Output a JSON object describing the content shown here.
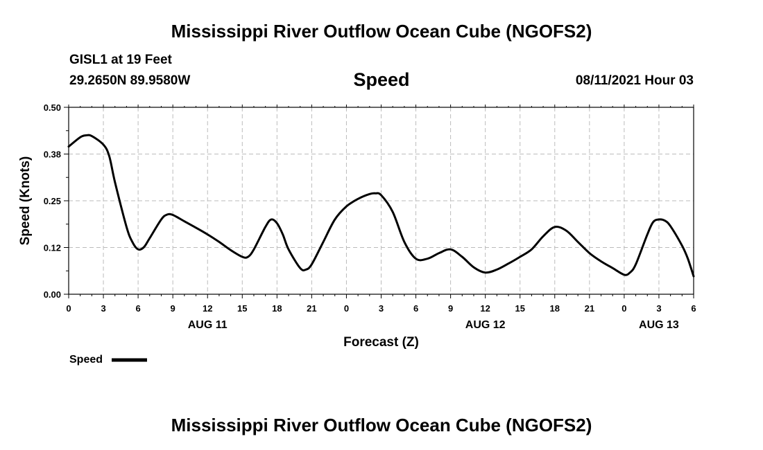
{
  "header": {
    "title": "Mississippi River Outflow Ocean Cube (NGOFS2)",
    "station": "GISL1 at 19 Feet",
    "coordinates": "29.2650N  89.9580W",
    "subtitle": "Speed",
    "datetime": "08/11/2021 Hour 03"
  },
  "footer": {
    "title": "Mississippi River Outflow Ocean Cube (NGOFS2)"
  },
  "colors": {
    "line": "#000000",
    "grid": "#bbbbbb"
  },
  "chart_data": {
    "type": "line",
    "title": "Speed",
    "xlabel": "Forecast (Z)",
    "ylabel": "Speed (Knots)",
    "xlim": [
      0,
      54
    ],
    "ylim": [
      0,
      0.5
    ],
    "grid": true,
    "legend": {
      "position": "bottom-left",
      "entries": [
        "Speed"
      ]
    },
    "yticks": [
      {
        "value": 0.0,
        "label": "0.00"
      },
      {
        "value": 0.125,
        "label": "0.12"
      },
      {
        "value": 0.25,
        "label": "0.25"
      },
      {
        "value": 0.375,
        "label": "0.38"
      },
      {
        "value": 0.5,
        "label": "0.50"
      }
    ],
    "xticks": [
      {
        "value": 0,
        "label": "0"
      },
      {
        "value": 3,
        "label": "3"
      },
      {
        "value": 6,
        "label": "6"
      },
      {
        "value": 9,
        "label": "9"
      },
      {
        "value": 12,
        "label": "12"
      },
      {
        "value": 15,
        "label": "15"
      },
      {
        "value": 18,
        "label": "18"
      },
      {
        "value": 21,
        "label": "21"
      },
      {
        "value": 24,
        "label": "0"
      },
      {
        "value": 27,
        "label": "3"
      },
      {
        "value": 30,
        "label": "6"
      },
      {
        "value": 33,
        "label": "9"
      },
      {
        "value": 36,
        "label": "12"
      },
      {
        "value": 39,
        "label": "15"
      },
      {
        "value": 42,
        "label": "18"
      },
      {
        "value": 45,
        "label": "21"
      },
      {
        "value": 48,
        "label": "0"
      },
      {
        "value": 51,
        "label": "3"
      },
      {
        "value": 54,
        "label": "6"
      }
    ],
    "date_labels": [
      {
        "value": 12,
        "label": "AUG 11"
      },
      {
        "value": 36,
        "label": "AUG 12"
      },
      {
        "value": 51,
        "label": "AUG 13"
      }
    ],
    "series": [
      {
        "name": "Speed",
        "x": [
          0,
          1,
          1.5,
          2,
          3,
          3.5,
          4,
          5,
          5.5,
          6,
          6.5,
          7,
          8,
          8.5,
          9,
          10,
          11,
          12,
          13,
          14,
          15,
          15.5,
          16,
          17,
          17.5,
          18,
          18.5,
          19,
          20,
          20.5,
          21,
          22,
          23,
          24,
          25,
          26,
          26.5,
          27,
          28,
          29,
          30,
          31,
          32,
          33,
          34,
          35,
          36,
          37,
          38,
          39,
          40,
          41,
          42,
          43,
          44,
          45,
          46,
          47,
          48,
          48.5,
          49,
          50,
          50.5,
          51,
          51.5,
          52,
          53,
          53.5,
          54
        ],
        "y": [
          0.395,
          0.42,
          0.425,
          0.423,
          0.4,
          0.37,
          0.3,
          0.18,
          0.14,
          0.12,
          0.126,
          0.15,
          0.2,
          0.213,
          0.212,
          0.195,
          0.178,
          0.16,
          0.14,
          0.118,
          0.1,
          0.1,
          0.12,
          0.18,
          0.2,
          0.19,
          0.16,
          0.12,
          0.07,
          0.066,
          0.08,
          0.14,
          0.2,
          0.235,
          0.255,
          0.268,
          0.27,
          0.265,
          0.22,
          0.14,
          0.095,
          0.095,
          0.11,
          0.12,
          0.1,
          0.072,
          0.058,
          0.066,
          0.082,
          0.1,
          0.12,
          0.155,
          0.18,
          0.17,
          0.14,
          0.11,
          0.088,
          0.07,
          0.052,
          0.058,
          0.08,
          0.16,
          0.193,
          0.2,
          0.197,
          0.182,
          0.13,
          0.095,
          0.048
        ]
      }
    ]
  }
}
